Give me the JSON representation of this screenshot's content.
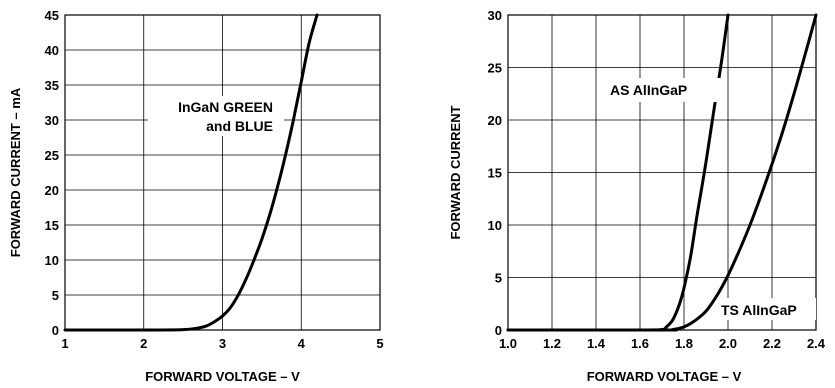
{
  "chart_data": [
    {
      "type": "line",
      "xlabel": "FORWARD VOLTAGE – V",
      "ylabel": "FORWARD CURRENT – mA",
      "xlim": [
        1,
        5
      ],
      "ylim": [
        0,
        45
      ],
      "xticks": [
        1,
        2,
        3,
        4,
        5
      ],
      "yticks": [
        0,
        5,
        10,
        15,
        20,
        25,
        30,
        35,
        40,
        45
      ],
      "xtick_labels": [
        "1",
        "2",
        "3",
        "4",
        "5"
      ],
      "ytick_labels": [
        "0",
        "5",
        "10",
        "15",
        "20",
        "25",
        "30",
        "35",
        "40",
        "45"
      ],
      "grid": true,
      "annotations": [
        "InGaN GREEN",
        "and BLUE"
      ],
      "series": [
        {
          "name": "InGaN GREEN and BLUE",
          "x": [
            1.0,
            2.0,
            2.5,
            2.7,
            2.8,
            2.9,
            3.0,
            3.1,
            3.2,
            3.3,
            3.4,
            3.5,
            3.6,
            3.7,
            3.8,
            3.9,
            4.0,
            4.1,
            4.2
          ],
          "y": [
            0,
            0,
            0.05,
            0.3,
            0.6,
            1.2,
            2.0,
            3.2,
            5.0,
            7.3,
            10.0,
            13.0,
            16.5,
            20.5,
            25.0,
            30.0,
            35.5,
            41.0,
            45.0
          ]
        }
      ]
    },
    {
      "type": "line",
      "xlabel": "FORWARD VOLTAGE – V",
      "ylabel": "FORWARD CURRENT",
      "xlim": [
        1.0,
        2.4
      ],
      "ylim": [
        0,
        30
      ],
      "xticks": [
        1.0,
        1.2,
        1.4,
        1.6,
        1.8,
        2.0,
        2.2,
        2.4
      ],
      "yticks": [
        0,
        5,
        10,
        15,
        20,
        25,
        30
      ],
      "xtick_labels": [
        "1.0",
        "1.2",
        "1.4",
        "1.6",
        "1.8",
        "2.0",
        "2.2",
        "2.4"
      ],
      "ytick_labels": [
        "0",
        "5",
        "10",
        "15",
        "20",
        "25",
        "30"
      ],
      "grid": true,
      "annotations": [
        "AS AlInGaP",
        "TS AlInGaP"
      ],
      "series": [
        {
          "name": "AS AlInGaP",
          "x": [
            1.0,
            1.6,
            1.7,
            1.72,
            1.75,
            1.78,
            1.8,
            1.83,
            1.86,
            1.9,
            1.94,
            1.97,
            2.0
          ],
          "y": [
            0,
            0,
            0.05,
            0.3,
            1.0,
            2.5,
            4.0,
            7.0,
            11.0,
            16.0,
            21.5,
            25.5,
            30.0
          ]
        },
        {
          "name": "TS AlInGaP",
          "x": [
            1.0,
            1.7,
            1.75,
            1.8,
            1.85,
            1.9,
            1.95,
            2.0,
            2.05,
            2.1,
            2.15,
            2.2,
            2.25,
            2.3,
            2.35,
            2.4
          ],
          "y": [
            0,
            0,
            0.05,
            0.3,
            0.9,
            1.8,
            3.3,
            5.2,
            7.5,
            10.0,
            12.8,
            15.8,
            19.0,
            22.5,
            26.2,
            30.0
          ]
        }
      ]
    }
  ]
}
